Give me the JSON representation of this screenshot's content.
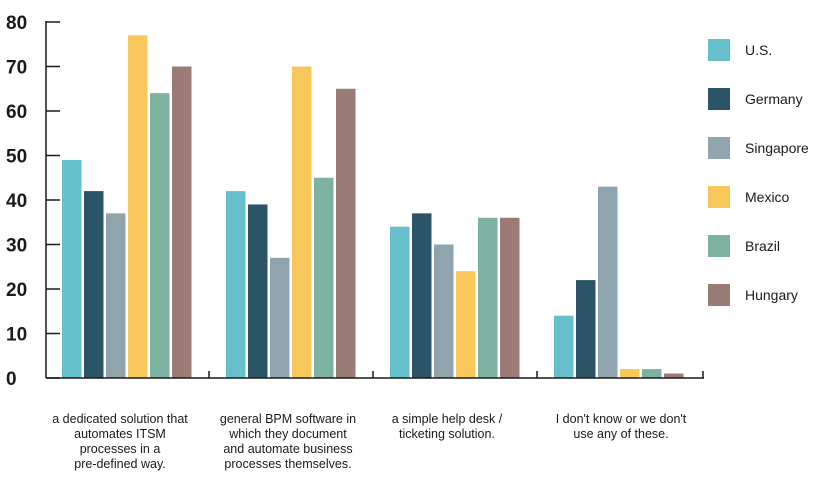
{
  "chart_data": {
    "type": "bar",
    "title": "",
    "xlabel": "",
    "ylabel": "",
    "ylim": [
      0,
      80
    ],
    "yticks": [
      "0",
      "10",
      "20",
      "30",
      "40",
      "50",
      "60",
      "70",
      "80"
    ],
    "grid": false,
    "legend_position": "right",
    "categories": [
      "a dedicated solution that\nautomates ITSM\nprocesses in a\npre-defined way.",
      "general BPM software in\nwhich they document\nand automate business\nprocesses themselves.",
      "a simple help desk /\nticketing solution.",
      "I don't know or we don't\nuse any of these."
    ],
    "series": [
      {
        "name": "U.S.",
        "color": "#65c0cc",
        "values": [
          49,
          42,
          34,
          14
        ]
      },
      {
        "name": "Germany",
        "color": "#2b5466",
        "values": [
          42,
          39,
          37,
          22
        ]
      },
      {
        "name": "Singapore",
        "color": "#8fa4ad",
        "values": [
          37,
          27,
          30,
          43
        ]
      },
      {
        "name": "Mexico",
        "color": "#f7c75c",
        "values": [
          77,
          70,
          24,
          2
        ]
      },
      {
        "name": "Brazil",
        "color": "#7db1a1",
        "values": [
          64,
          45,
          36,
          2
        ]
      },
      {
        "name": "Hungary",
        "color": "#9b7b76",
        "values": [
          70,
          65,
          36,
          1
        ]
      }
    ]
  }
}
